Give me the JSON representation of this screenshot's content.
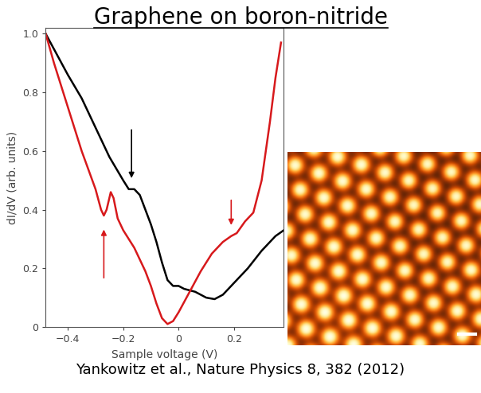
{
  "chart_data": {
    "type": "line",
    "title": "Graphene on boron-nitride",
    "caption": "Yankowitz et al., Nature Physics 8, 382 (2012)",
    "x_label": "Sample voltage (V)",
    "y_label": "dI/dV (arb. units)",
    "xlim": [
      -0.48,
      0.38
    ],
    "ylim": [
      0,
      1.02
    ],
    "xticks": [
      {
        "value": -0.4,
        "label": "−0.4"
      },
      {
        "value": -0.2,
        "label": "−0.2"
      },
      0,
      0.2
    ],
    "yticks": [
      0,
      0.2,
      0.4,
      0.6,
      0.8,
      1.0
    ],
    "grid": false,
    "series": [
      {
        "color": "#000000",
        "x": [
          -0.48,
          -0.44,
          -0.4,
          -0.35,
          -0.3,
          -0.25,
          -0.2,
          -0.18,
          -0.16,
          -0.14,
          -0.12,
          -0.1,
          -0.08,
          -0.06,
          -0.04,
          -0.02,
          0,
          0.02,
          0.06,
          0.1,
          0.13,
          0.16,
          0.2,
          0.25,
          0.3,
          0.35,
          0.38
        ],
        "values": [
          1.0,
          0.93,
          0.86,
          0.78,
          0.68,
          0.58,
          0.5,
          0.47,
          0.47,
          0.45,
          0.4,
          0.35,
          0.29,
          0.22,
          0.16,
          0.14,
          0.14,
          0.13,
          0.12,
          0.1,
          0.095,
          0.11,
          0.15,
          0.2,
          0.26,
          0.31,
          0.33
        ]
      },
      {
        "color": "#d7191c",
        "x": [
          -0.48,
          -0.45,
          -0.4,
          -0.35,
          -0.3,
          -0.28,
          -0.27,
          -0.26,
          -0.245,
          -0.235,
          -0.22,
          -0.2,
          -0.16,
          -0.12,
          -0.1,
          -0.08,
          -0.06,
          -0.04,
          -0.02,
          0,
          0.04,
          0.08,
          0.12,
          0.16,
          0.19,
          0.21,
          0.24,
          0.27,
          0.3,
          0.33,
          0.35,
          0.37
        ],
        "values": [
          1.0,
          0.9,
          0.75,
          0.6,
          0.47,
          0.4,
          0.38,
          0.4,
          0.46,
          0.44,
          0.37,
          0.33,
          0.27,
          0.19,
          0.14,
          0.08,
          0.03,
          0.01,
          0.02,
          0.05,
          0.12,
          0.19,
          0.25,
          0.29,
          0.31,
          0.32,
          0.36,
          0.39,
          0.5,
          0.7,
          0.85,
          0.97
        ]
      }
    ],
    "arrows": [
      {
        "x": -0.17,
        "y_start": 0.68,
        "y_end": 0.5,
        "color": "#000000"
      },
      {
        "x": -0.27,
        "y_start": 0.16,
        "y_end": 0.34,
        "color": "#d7191c"
      },
      {
        "x": 0.19,
        "y_start": 0.44,
        "y_end": 0.34,
        "color": "#d7191c"
      }
    ]
  }
}
